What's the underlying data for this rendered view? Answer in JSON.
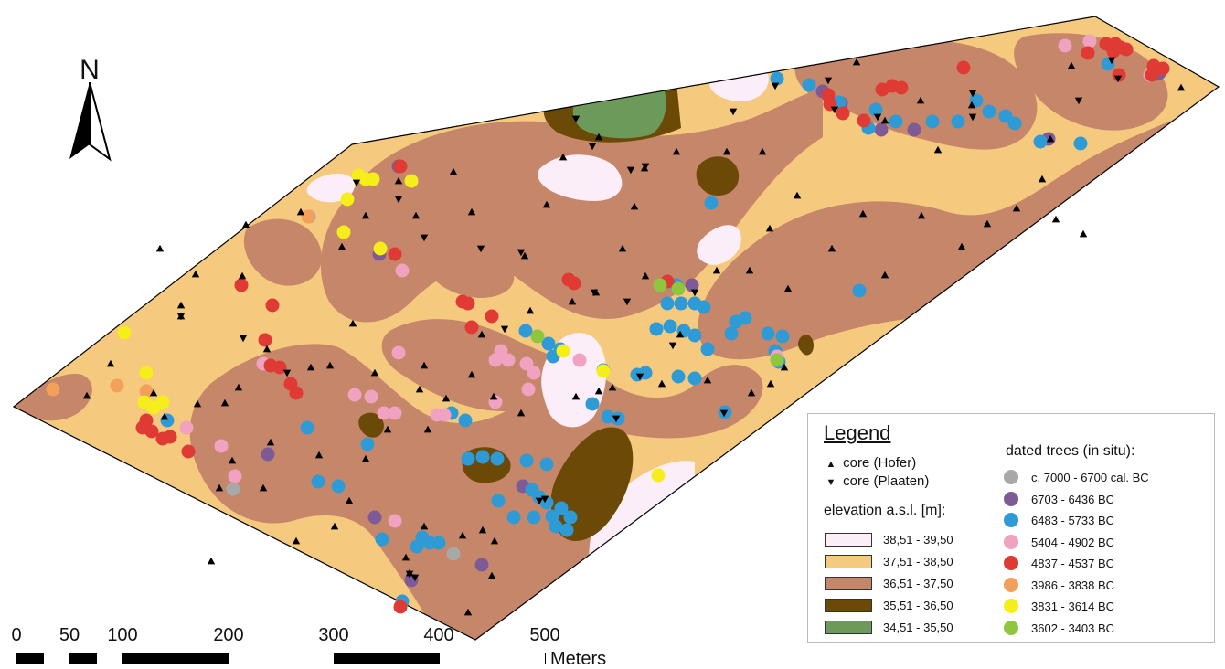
{
  "north_label": "N",
  "scale": {
    "ticks": [
      "0",
      "50",
      "100",
      "200",
      "300",
      "400",
      "500"
    ],
    "unit": "Meters"
  },
  "legend": {
    "title": "Legend",
    "cores": [
      {
        "symbol": "▲",
        "label": "core (Hofer)"
      },
      {
        "symbol": "▼",
        "label": "core (Plaaten)"
      }
    ],
    "elevation_title": "elevation a.s.l. [m]:",
    "elevation": [
      {
        "label": "38,51 - 39,50",
        "color": "#fbeef8"
      },
      {
        "label": "37,51 - 38,50",
        "color": "#f5c97e"
      },
      {
        "label": "36,51 - 37,50",
        "color": "#c6866a"
      },
      {
        "label": "35,51 - 36,50",
        "color": "#6b4a07"
      },
      {
        "label": "34,51 - 35,50",
        "color": "#6b9a5a"
      }
    ],
    "trees_title": "dated trees (in situ):",
    "trees": [
      {
        "label": "c. 7000 - 6700 cal. BC",
        "color": "#a8a8a8"
      },
      {
        "label": "6703 - 6436  BC",
        "color": "#7e5b97"
      },
      {
        "label": "6483 - 5733  BC",
        "color": "#2f9bd6"
      },
      {
        "label": "5404 - 4902  BC",
        "color": "#f0a2c0"
      },
      {
        "label": "4837 - 4537  BC",
        "color": "#e03a34"
      },
      {
        "label": "3986 - 3838  BC",
        "color": "#f2a05a"
      },
      {
        "label": "3831 - 3614  BC",
        "color": "#f6ee1a"
      },
      {
        "label": "3602 - 3403  BC",
        "color": "#8fc63f"
      }
    ]
  }
}
